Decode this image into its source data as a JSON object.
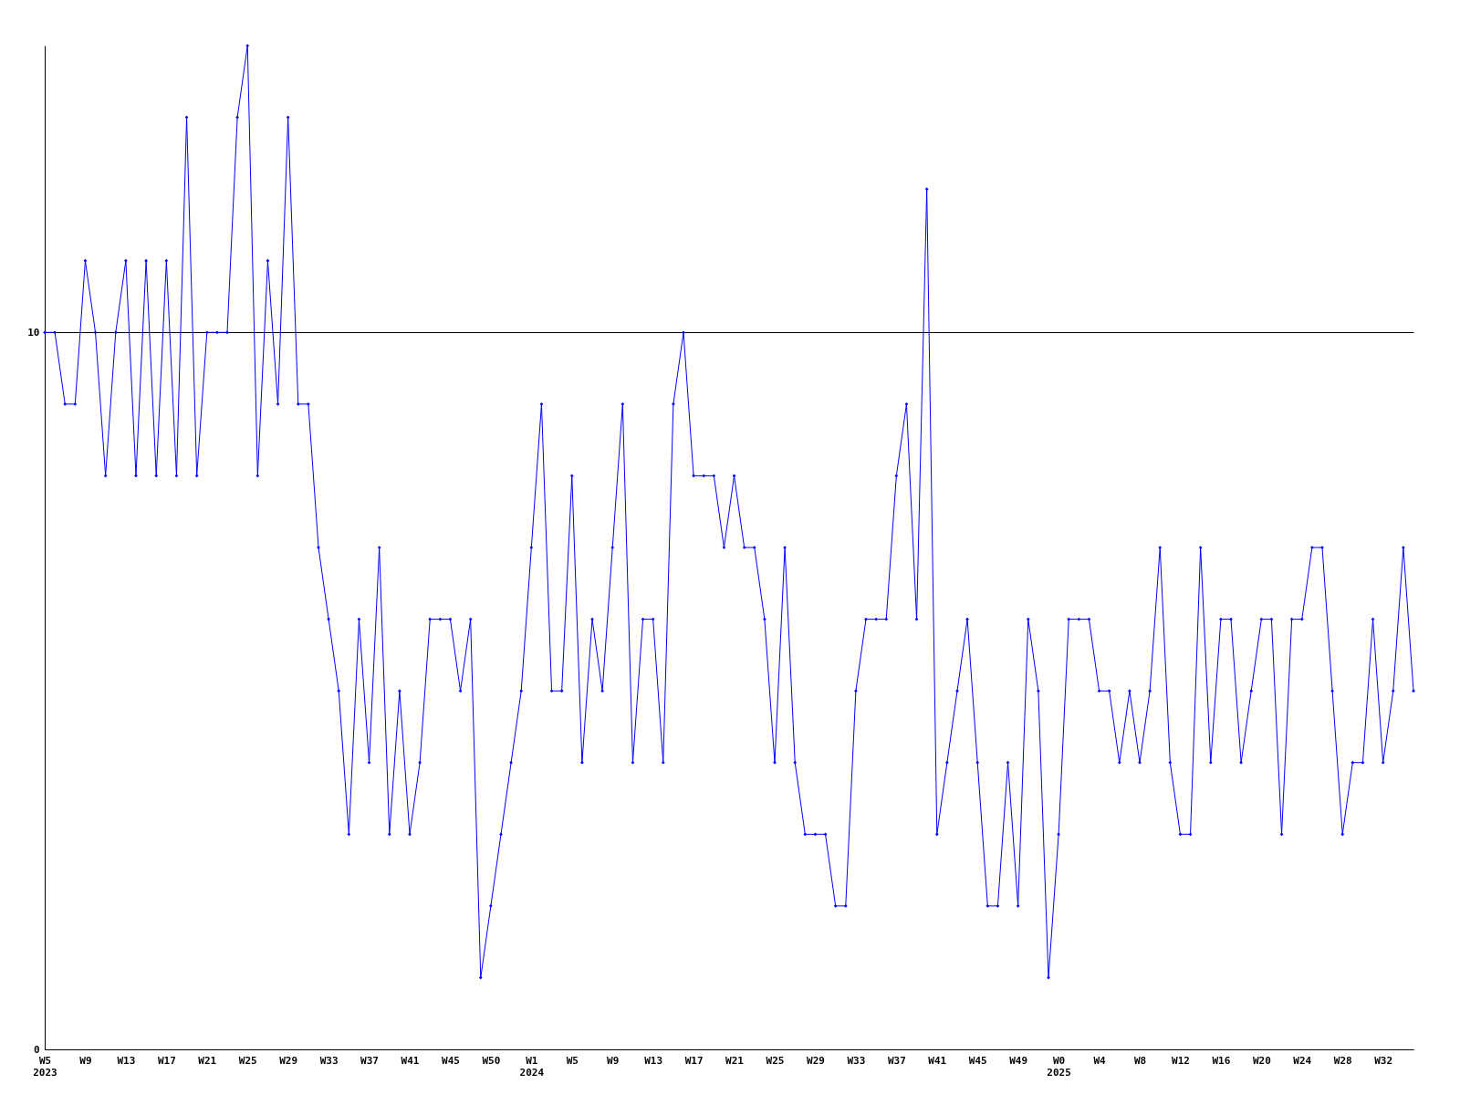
{
  "chart_data": {
    "type": "line",
    "categories": [
      "W5\n2023",
      null,
      null,
      null,
      "W9",
      null,
      null,
      null,
      "W13",
      null,
      null,
      null,
      "W17",
      null,
      null,
      null,
      "W21",
      null,
      null,
      null,
      "W25",
      null,
      null,
      null,
      "W29",
      null,
      null,
      null,
      "W33",
      null,
      null,
      null,
      "W37",
      null,
      null,
      null,
      "W41",
      null,
      null,
      null,
      "W45",
      null,
      null,
      null,
      "W50",
      null,
      null,
      null,
      "W1\n2024",
      null,
      null,
      null,
      "W5",
      null,
      null,
      null,
      "W9",
      null,
      null,
      null,
      "W13",
      null,
      null,
      null,
      "W17",
      null,
      null,
      null,
      "W21",
      null,
      null,
      null,
      "W25",
      null,
      null,
      null,
      "W29",
      null,
      null,
      null,
      "W33",
      null,
      null,
      null,
      "W37",
      null,
      null,
      null,
      "W41",
      null,
      null,
      null,
      "W45",
      null,
      null,
      null,
      "W49",
      null,
      null,
      null,
      "W0\n2025",
      null,
      null,
      null,
      "W4",
      null,
      null,
      null,
      "W8",
      null,
      null,
      null,
      "W12",
      null,
      null,
      null,
      "W16",
      null,
      null,
      null,
      "W20",
      null,
      null,
      null,
      "W24",
      null,
      null,
      null,
      "W28",
      null,
      null,
      null,
      "W32",
      null,
      null,
      null
    ],
    "series": [
      {
        "color": "#0000ff",
        "values": [
          10,
          10,
          9,
          9,
          11,
          10,
          8,
          10,
          11,
          8,
          11,
          8,
          11,
          8,
          13,
          8,
          10,
          10,
          10,
          13,
          14,
          8,
          11,
          9,
          13,
          9,
          9,
          7,
          6,
          5,
          3,
          6,
          4,
          7,
          3,
          5,
          3,
          4,
          6,
          6,
          6,
          5,
          6,
          1,
          2,
          3,
          4,
          5,
          7,
          9,
          5,
          5,
          8,
          4,
          6,
          5,
          7,
          9,
          4,
          6,
          6,
          4,
          9,
          10,
          8,
          8,
          8,
          7,
          8,
          7,
          7,
          6,
          4,
          7,
          4,
          3,
          3,
          3,
          2,
          2,
          5,
          6,
          6,
          6,
          8,
          9,
          6,
          12,
          3,
          4,
          5,
          6,
          4,
          2,
          2,
          4,
          2,
          6,
          5,
          1,
          3,
          6,
          6,
          6,
          5,
          5,
          4,
          5,
          4,
          5,
          7,
          4,
          3,
          3,
          7,
          4,
          6,
          6,
          4,
          5,
          6,
          6,
          3,
          6,
          6,
          7,
          7,
          5,
          3,
          4,
          4,
          6,
          4,
          5,
          7,
          5
        ]
      }
    ],
    "ylim": [
      0,
      14
    ],
    "yticks": [
      0,
      10
    ],
    "grid": "y",
    "marker": "diamond",
    "line_style": "solid"
  }
}
